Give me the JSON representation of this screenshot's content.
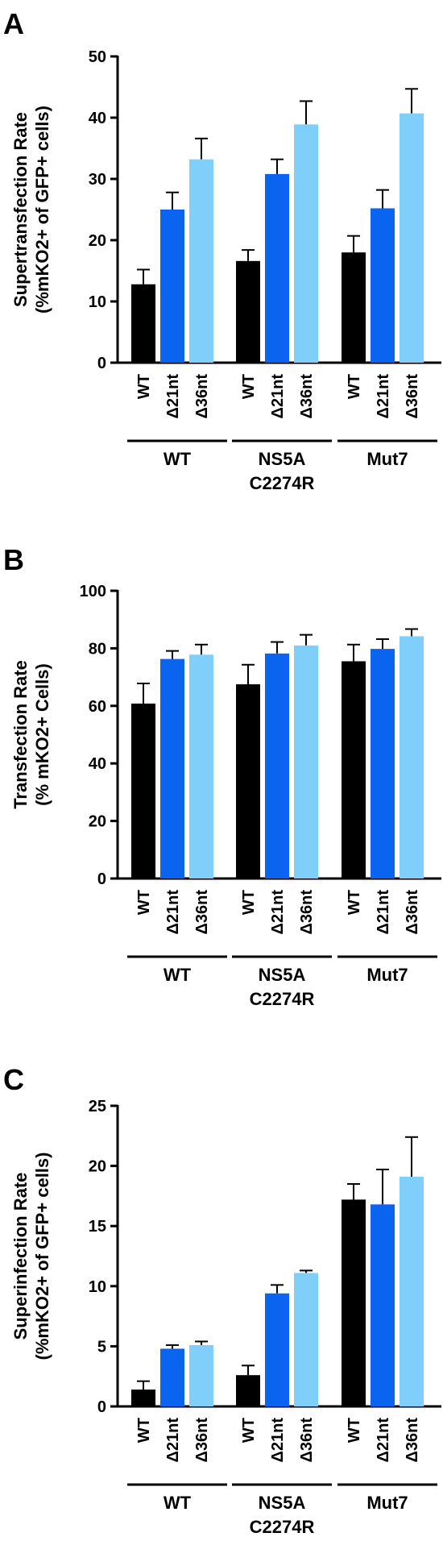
{
  "chart_data": [
    {
      "type": "bar",
      "panel_label": "A",
      "ylabel_line1": "Supertransfection Rate",
      "ylabel_line2": "(%mKO2+ of GFP+ cells)",
      "ylim": [
        0,
        50
      ],
      "yticks": [
        0,
        10,
        20,
        30,
        40,
        50
      ],
      "groups": [
        {
          "label_lines": [
            "WT"
          ],
          "categories": [
            "WT",
            "Δ21nt",
            "Δ36nt"
          ],
          "values": [
            12.8,
            25.0,
            33.2
          ],
          "errors": [
            2.4,
            2.8,
            3.4
          ]
        },
        {
          "label_lines": [
            "NS5A",
            "C2274R"
          ],
          "categories": [
            "WT",
            "Δ21nt",
            "Δ36nt"
          ],
          "values": [
            16.6,
            30.8,
            38.9
          ],
          "errors": [
            1.8,
            2.4,
            3.8
          ]
        },
        {
          "label_lines": [
            "Mut7"
          ],
          "categories": [
            "WT",
            "Δ21nt",
            "Δ36nt"
          ],
          "values": [
            18.0,
            25.2,
            40.7
          ],
          "errors": [
            2.7,
            3.0,
            4.0
          ]
        }
      ]
    },
    {
      "type": "bar",
      "panel_label": "B",
      "ylabel_line1": "Transfection Rate",
      "ylabel_line2": "(% mKO2+ Cells)",
      "ylim": [
        0,
        100
      ],
      "yticks": [
        0,
        20,
        40,
        60,
        80,
        100
      ],
      "groups": [
        {
          "label_lines": [
            "WT"
          ],
          "categories": [
            "WT",
            "Δ21nt",
            "Δ36nt"
          ],
          "values": [
            60.8,
            76.3,
            77.8
          ],
          "errors": [
            7.0,
            2.8,
            3.5
          ]
        },
        {
          "label_lines": [
            "NS5A",
            "C2274R"
          ],
          "categories": [
            "WT",
            "Δ21nt",
            "Δ36nt"
          ],
          "values": [
            67.5,
            78.2,
            81.0
          ],
          "errors": [
            6.8,
            4.0,
            3.7
          ]
        },
        {
          "label_lines": [
            "Mut7"
          ],
          "categories": [
            "WT",
            "Δ21nt",
            "Δ36nt"
          ],
          "values": [
            75.5,
            79.8,
            84.2
          ],
          "errors": [
            5.8,
            3.4,
            2.5
          ]
        }
      ]
    },
    {
      "type": "bar",
      "panel_label": "C",
      "ylabel_line1": "Superinfection Rate",
      "ylabel_line2": "(%mKO2+ of GFP+ cells)",
      "ylim": [
        0,
        25
      ],
      "yticks": [
        0,
        5,
        10,
        15,
        20,
        25
      ],
      "groups": [
        {
          "label_lines": [
            "WT"
          ],
          "categories": [
            "WT",
            "Δ21nt",
            "Δ36nt"
          ],
          "values": [
            1.4,
            4.8,
            5.1
          ],
          "errors": [
            0.7,
            0.3,
            0.3
          ]
        },
        {
          "label_lines": [
            "NS5A",
            "C2274R"
          ],
          "categories": [
            "WT",
            "Δ21nt",
            "Δ36nt"
          ],
          "values": [
            2.6,
            9.4,
            11.1
          ],
          "errors": [
            0.8,
            0.7,
            0.2
          ]
        },
        {
          "label_lines": [
            "Mut7"
          ],
          "categories": [
            "WT",
            "Δ21nt",
            "Δ36nt"
          ],
          "values": [
            17.2,
            16.8,
            19.1
          ],
          "errors": [
            1.3,
            2.9,
            3.3
          ]
        }
      ]
    }
  ],
  "colors": {
    "WT": "#000000",
    "Δ21nt": "#0a64f0",
    "Δ36nt": "#80cffa"
  }
}
